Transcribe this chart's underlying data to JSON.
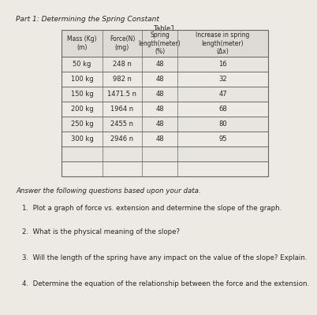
{
  "title": "Part 1: Determining the Spring Constant",
  "table_title": "Table1",
  "col_headers": [
    "Mass (Kg)\n(m)",
    "Force(N)\n(mg)",
    "Spring\nlength(meter)\n(%)",
    "Increase in spring\nlength(meter)\n(Δx)"
  ],
  "rows": [
    [
      "50 kg",
      "248 n",
      "48",
      "16"
    ],
    [
      "100 kg",
      "982 n",
      "48",
      "32"
    ],
    [
      "150 kg",
      "1471.5 n",
      "48",
      "47"
    ],
    [
      "200 kg",
      "1964 n",
      "48",
      "68"
    ],
    [
      "250 kg",
      "2455 n",
      "48",
      "80"
    ],
    [
      "300 kg",
      "2946 n",
      "48",
      "95"
    ]
  ],
  "questions_intro": "Answer the following questions based upon your data.",
  "questions": [
    "1.  Plot a graph of force vs. extension and determine the slope of the graph.",
    "2.  What is the physical meaning of the slope?",
    "3.  Will the length of the spring have any impact on the value of the slope? Explain.",
    "4.  Determine the equation of the relationship between the force and the extension."
  ],
  "bg_color": "#ede9e3",
  "text_color": "#2a2420",
  "table_border_color": "#666666",
  "font_size_title": 6.5,
  "font_size_table_header": 5.5,
  "font_size_table_data": 6.0,
  "font_size_questions": 6.2
}
